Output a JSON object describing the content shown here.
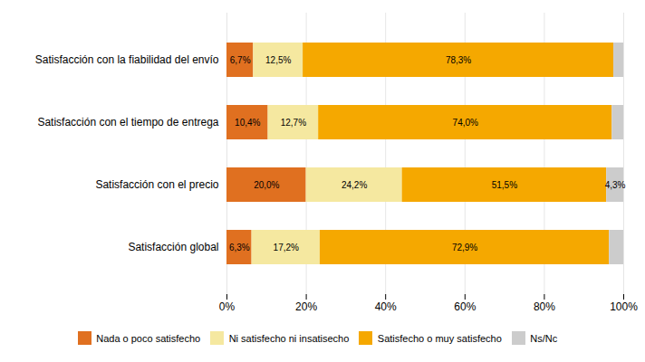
{
  "chart_data": {
    "type": "bar",
    "orientation": "horizontal",
    "stacked": true,
    "categories": [
      "Satisfacción con la fiabilidad del envío",
      "Satisfacción con el tiempo de entrega",
      "Satisfacción con el precio",
      "Satisfacción global"
    ],
    "series": [
      {
        "name": "Nada o poco satisfecho",
        "color": "#E07020",
        "values": [
          6.7,
          10.4,
          20.0,
          6.3
        ],
        "value_labels": [
          "6,7%",
          "10,4%",
          "20,0%",
          "6,3%"
        ]
      },
      {
        "name": "Ni satisfecho ni insatisecho",
        "color": "#F5E8A0",
        "values": [
          12.5,
          12.7,
          24.2,
          17.2
        ],
        "value_labels": [
          "12,5%",
          "12,7%",
          "24,2%",
          "17,2%"
        ]
      },
      {
        "name": "Satisfecho o muy satisfecho",
        "color": "#F5A800",
        "values": [
          78.3,
          74.0,
          51.5,
          72.9
        ],
        "value_labels": [
          "78,3%",
          "74,0%",
          "51,5%",
          "72,9%"
        ]
      },
      {
        "name": "Ns/Nc",
        "color": "#CCCCCC",
        "values": [
          2.5,
          2.9,
          4.3,
          3.6
        ],
        "value_labels": [
          null,
          null,
          "4,3%",
          null
        ]
      }
    ],
    "xlim": [
      0,
      100
    ],
    "xticks": [
      {
        "value": 0,
        "label": "0%"
      },
      {
        "value": 20,
        "label": "20%"
      },
      {
        "value": 40,
        "label": "40%"
      },
      {
        "value": 60,
        "label": "60%"
      },
      {
        "value": 80,
        "label": "80%"
      },
      {
        "value": 100,
        "label": "100%"
      }
    ],
    "grid": true,
    "data_labels": true,
    "legend": "bottom"
  }
}
